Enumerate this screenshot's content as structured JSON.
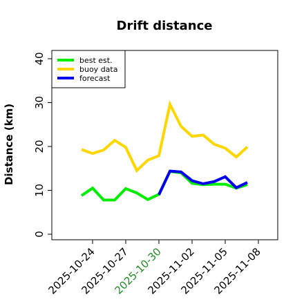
{
  "chart_data": {
    "type": "line",
    "title": "Drift distance",
    "xlabel": "",
    "ylabel": "Distance (km)",
    "ylim": [
      0,
      40
    ],
    "yticks": [
      0,
      10,
      20,
      30,
      40
    ],
    "x_axis_type": "date",
    "xlim": [
      "2025-10-22",
      "2025-11-08"
    ],
    "xticks": [
      {
        "date": "2025-10-24",
        "label": "2025-10-24",
        "color": "#000000"
      },
      {
        "date": "2025-10-27",
        "label": "2025-10-27",
        "color": "#000000"
      },
      {
        "date": "2025-10-30",
        "label": "2025-10-30",
        "color": "#228b22"
      },
      {
        "date": "2025-11-02",
        "label": "2025-11-02",
        "color": "#000000"
      },
      {
        "date": "2025-11-05",
        "label": "2025-11-05",
        "color": "#000000"
      },
      {
        "date": "2025-11-08",
        "label": "2025-11-08",
        "color": "#000000"
      }
    ],
    "grid": false,
    "legend_position": "top-left",
    "series": [
      {
        "name": "best est.",
        "color": "#00ee00",
        "points": [
          {
            "x": "2025-10-23",
            "y": 8.8
          },
          {
            "x": "2025-10-24",
            "y": 10.5
          },
          {
            "x": "2025-10-25",
            "y": 7.8
          },
          {
            "x": "2025-10-26",
            "y": 7.8
          },
          {
            "x": "2025-10-27",
            "y": 10.4
          },
          {
            "x": "2025-10-28",
            "y": 9.4
          },
          {
            "x": "2025-10-29",
            "y": 7.9
          },
          {
            "x": "2025-10-30",
            "y": 9.1
          },
          {
            "x": "2025-10-31",
            "y": 14.3
          },
          {
            "x": "2025-11-01",
            "y": 14.0
          },
          {
            "x": "2025-11-02",
            "y": 11.6
          },
          {
            "x": "2025-11-03",
            "y": 11.3
          },
          {
            "x": "2025-11-04",
            "y": 11.4
          },
          {
            "x": "2025-11-05",
            "y": 11.4
          },
          {
            "x": "2025-11-06",
            "y": 10.5
          },
          {
            "x": "2025-11-07",
            "y": 11.3
          }
        ]
      },
      {
        "name": "buoy data",
        "color": "#ffd700",
        "points": [
          {
            "x": "2025-10-23",
            "y": 19.3
          },
          {
            "x": "2025-10-24",
            "y": 18.4
          },
          {
            "x": "2025-10-25",
            "y": 19.2
          },
          {
            "x": "2025-10-26",
            "y": 21.4
          },
          {
            "x": "2025-10-27",
            "y": 19.8
          },
          {
            "x": "2025-10-28",
            "y": 14.5
          },
          {
            "x": "2025-10-29",
            "y": 16.9
          },
          {
            "x": "2025-10-30",
            "y": 17.9
          },
          {
            "x": "2025-10-31",
            "y": 29.6
          },
          {
            "x": "2025-11-01",
            "y": 24.6
          },
          {
            "x": "2025-11-02",
            "y": 22.3
          },
          {
            "x": "2025-11-03",
            "y": 22.6
          },
          {
            "x": "2025-11-04",
            "y": 20.5
          },
          {
            "x": "2025-11-05",
            "y": 19.6
          },
          {
            "x": "2025-11-06",
            "y": 17.6
          },
          {
            "x": "2025-11-07",
            "y": 19.9
          }
        ]
      },
      {
        "name": "forecast",
        "color": "#0000ee",
        "points": [
          {
            "x": "2025-10-30",
            "y": 9.0
          },
          {
            "x": "2025-10-31",
            "y": 14.4
          },
          {
            "x": "2025-11-01",
            "y": 14.2
          },
          {
            "x": "2025-11-02",
            "y": 12.2
          },
          {
            "x": "2025-11-03",
            "y": 11.5
          },
          {
            "x": "2025-11-04",
            "y": 12.0
          },
          {
            "x": "2025-11-05",
            "y": 13.1
          },
          {
            "x": "2025-11-06",
            "y": 10.6
          },
          {
            "x": "2025-11-07",
            "y": 11.8
          }
        ]
      }
    ]
  }
}
